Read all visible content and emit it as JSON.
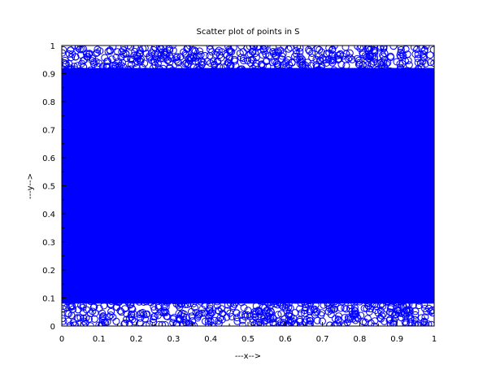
{
  "chart_data": {
    "type": "scatter",
    "title": "Scatter plot of points in S",
    "xlabel": "---x-->",
    "ylabel": "---y-->",
    "xlim": [
      0,
      1
    ],
    "ylim": [
      0,
      1
    ],
    "x_ticks": [
      "0",
      "0.1",
      "0.2",
      "0.3",
      "0.4",
      "0.5",
      "0.6",
      "0.7",
      "0.8",
      "0.9",
      "1"
    ],
    "y_ticks": [
      "0",
      "0.1",
      "0.2",
      "0.3",
      "0.4",
      "0.5",
      "0.6",
      "0.7",
      "0.8",
      "0.9",
      "1"
    ],
    "marker": "circle-open",
    "marker_color": "#0000ff",
    "grid": false,
    "distribution": "dense uniform random points filling 0<=x<=1 and 0<=y<=1; approximate individual point values",
    "point_count": 300,
    "series": [
      {
        "x": [
          0.02,
          0.07,
          0.13,
          0.19,
          0.25,
          0.31,
          0.37,
          0.44,
          0.51,
          0.58,
          0.64,
          0.71,
          0.78,
          0.84,
          0.91,
          0.97,
          0.05,
          0.11,
          0.22,
          0.34,
          0.47,
          0.55,
          0.68,
          0.76,
          0.88,
          0.95,
          0.03,
          0.16,
          0.29,
          0.41,
          0.53,
          0.66,
          0.73,
          0.82,
          0.93,
          0.99
        ],
        "y": [
          0.97,
          0.96,
          0.98,
          0.95,
          0.97,
          0.96,
          0.98,
          0.97,
          0.95,
          0.98,
          0.96,
          0.97,
          0.95,
          0.98,
          0.96,
          0.97,
          0.03,
          0.02,
          0.04,
          0.01,
          0.03,
          0.02,
          0.04,
          0.03,
          0.02,
          0.01,
          0.06,
          0.05,
          0.94,
          0.93,
          0.05,
          0.94,
          0.06,
          0.93,
          0.05,
          0.94
        ]
      }
    ]
  }
}
